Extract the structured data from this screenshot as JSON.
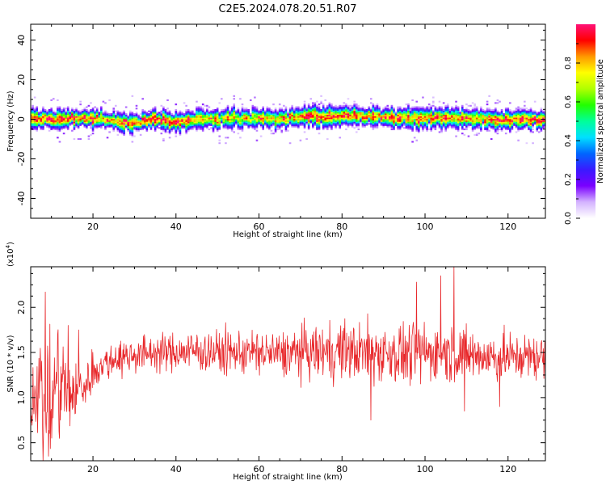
{
  "title": "C2E5.2024.078.20.51.R07",
  "chart_data": [
    {
      "type": "heatmap",
      "xlabel": "Height of straight line (km)",
      "ylabel": "Frequency (Hz)",
      "xlim": [
        5,
        129
      ],
      "ylim": [
        -50,
        48
      ],
      "xticks": [
        20,
        40,
        60,
        80,
        100,
        120
      ],
      "yticks": [
        -40,
        -20,
        0,
        20,
        40
      ],
      "colorbar": {
        "label": "Normalized spectral amplitude",
        "range": [
          0,
          1
        ],
        "ticks": [
          0.0,
          0.2,
          0.4,
          0.6,
          0.8
        ],
        "tick_labels": [
          "0.0",
          "0.2",
          "0.4",
          "0.6",
          "0.8"
        ],
        "colors": [
          "#ffffff",
          "#d4b3ff",
          "#7a00ff",
          "#3a1aff",
          "#0066ff",
          "#00e0ff",
          "#00ff99",
          "#22ff00",
          "#b0ff00",
          "#ffff00",
          "#ff9900",
          "#ff0000",
          "#ff1177"
        ]
      },
      "ridge": {
        "x": [
          5,
          10,
          15,
          20,
          25,
          30,
          35,
          40,
          45,
          50,
          55,
          60,
          65,
          70,
          75,
          80,
          85,
          90,
          95,
          100,
          105,
          110,
          115,
          120,
          125,
          129
        ],
        "center_hz": [
          0.0,
          0.2,
          0.6,
          0.4,
          -0.8,
          -1.8,
          0.2,
          -1.5,
          0.3,
          0.2,
          0.5,
          0.6,
          0.2,
          1.5,
          1.2,
          2.0,
          1.8,
          1.4,
          0.6,
          0.8,
          1.0,
          0.5,
          0.2,
          0.0,
          0.0,
          0.0
        ],
        "peak_amplitude": [
          0.95,
          0.9,
          0.9,
          0.85,
          0.8,
          0.85,
          0.95,
          0.9,
          0.8,
          0.75,
          0.7,
          0.75,
          0.8,
          0.85,
          0.9,
          0.85,
          0.9,
          0.8,
          0.85,
          0.8,
          0.85,
          0.8,
          0.8,
          0.9,
          0.95,
          0.95
        ]
      }
    },
    {
      "type": "line",
      "xlabel": "Height of straight line (km)",
      "ylabel": "SNR (10 * v/v)",
      "multiplier": "(x10",
      "multiplier_exp": "4",
      "multiplier_close": ")",
      "xlim": [
        5,
        129
      ],
      "ylim": [
        0.3,
        2.45
      ],
      "xticks": [
        20,
        40,
        60,
        80,
        100,
        120
      ],
      "yticks": [
        0.5,
        1.0,
        1.5,
        2.0
      ],
      "ytick_labels": [
        "0.5",
        "1.0",
        "1.5",
        "2.0"
      ],
      "color": "#e8282b",
      "series": [
        {
          "x": [
            5,
            6,
            7,
            8,
            9,
            10,
            11,
            12,
            13,
            14,
            15,
            16,
            17,
            18,
            19,
            20,
            22,
            24,
            26,
            28,
            30,
            35,
            40,
            45,
            50,
            55,
            60,
            65,
            70,
            75,
            80,
            85,
            90,
            95,
            100,
            105,
            110,
            115,
            120,
            125,
            129
          ],
          "mean": [
            0.9,
            1.05,
            1.2,
            0.95,
            1.0,
            0.85,
            1.2,
            1.0,
            1.25,
            0.9,
            1.1,
            1.0,
            1.15,
            1.1,
            1.2,
            1.3,
            1.35,
            1.4,
            1.45,
            1.45,
            1.48,
            1.5,
            1.5,
            1.52,
            1.5,
            1.5,
            1.5,
            1.48,
            1.5,
            1.5,
            1.52,
            1.5,
            1.5,
            1.48,
            1.5,
            1.5,
            1.48,
            1.45,
            1.45,
            1.45,
            1.45
          ],
          "spread": [
            0.15,
            0.2,
            0.25,
            0.3,
            0.35,
            0.3,
            0.3,
            0.25,
            0.25,
            0.2,
            0.2,
            0.18,
            0.15,
            0.12,
            0.12,
            0.12,
            0.1,
            0.1,
            0.1,
            0.1,
            0.1,
            0.1,
            0.1,
            0.12,
            0.12,
            0.12,
            0.12,
            0.12,
            0.14,
            0.15,
            0.16,
            0.17,
            0.17,
            0.17,
            0.16,
            0.15,
            0.15,
            0.14,
            0.13,
            0.12,
            0.12
          ]
        }
      ],
      "spikes": [
        {
          "x": 8.0,
          "y": 0.3
        },
        {
          "x": 8.5,
          "y": 2.17
        },
        {
          "x": 9.3,
          "y": 0.35
        },
        {
          "x": 11.5,
          "y": 1.7
        },
        {
          "x": 14.0,
          "y": 1.8
        },
        {
          "x": 16.5,
          "y": 1.75
        },
        {
          "x": 87.0,
          "y": 0.75
        },
        {
          "x": 98.0,
          "y": 2.28
        },
        {
          "x": 103.8,
          "y": 2.35
        },
        {
          "x": 107.0,
          "y": 2.45
        },
        {
          "x": 109.5,
          "y": 0.85
        },
        {
          "x": 118.0,
          "y": 0.9
        }
      ]
    }
  ]
}
